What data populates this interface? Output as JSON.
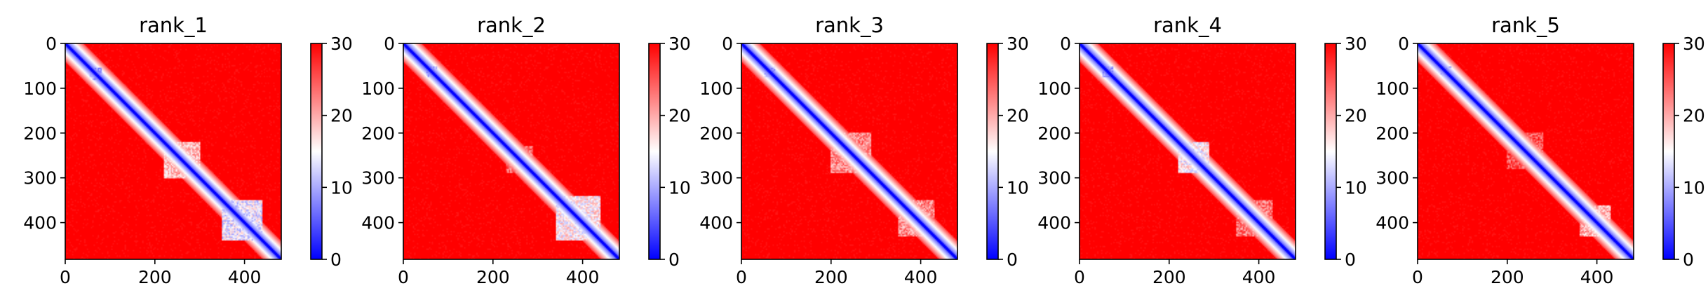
{
  "chart_data": [
    {
      "type": "heatmap",
      "title": "rank_1",
      "xlabel": "",
      "ylabel": "",
      "xlim": [
        0,
        482
      ],
      "ylim": [
        482,
        0
      ],
      "xticks": [
        0,
        200,
        400
      ],
      "yticks": [
        0,
        100,
        200,
        300,
        400
      ],
      "colorbar": {
        "range": [
          0,
          30
        ],
        "ticks": [
          0,
          10,
          20,
          30
        ],
        "cmap": "bwr"
      },
      "blocks": [
        {
          "start": 55,
          "end": 80,
          "value": 6
        },
        {
          "start": 220,
          "end": 300,
          "value": 14
        },
        {
          "start": 350,
          "end": 440,
          "value": 9
        }
      ]
    },
    {
      "type": "heatmap",
      "title": "rank_2",
      "xlabel": "",
      "ylabel": "",
      "xlim": [
        0,
        482
      ],
      "ylim": [
        482,
        0
      ],
      "xticks": [
        0,
        200,
        400
      ],
      "yticks": [
        0,
        100,
        200,
        300,
        400
      ],
      "colorbar": {
        "range": [
          0,
          30
        ],
        "ticks": [
          0,
          10,
          20,
          30
        ],
        "cmap": "bwr"
      },
      "blocks": [
        {
          "start": 50,
          "end": 75,
          "value": 7
        },
        {
          "start": 230,
          "end": 290,
          "value": 19
        },
        {
          "start": 340,
          "end": 440,
          "value": 11
        }
      ]
    },
    {
      "type": "heatmap",
      "title": "rank_3",
      "xlabel": "",
      "ylabel": "",
      "xlim": [
        0,
        482
      ],
      "ylim": [
        482,
        0
      ],
      "xticks": [
        0,
        200,
        400
      ],
      "yticks": [
        0,
        100,
        200,
        300,
        400
      ],
      "colorbar": {
        "range": [
          0,
          30
        ],
        "ticks": [
          0,
          10,
          20,
          30
        ],
        "cmap": "bwr"
      },
      "blocks": [
        {
          "start": 50,
          "end": 75,
          "value": 6
        },
        {
          "start": 200,
          "end": 290,
          "value": 17
        },
        {
          "start": 350,
          "end": 430,
          "value": 17
        }
      ]
    },
    {
      "type": "heatmap",
      "title": "rank_4",
      "xlabel": "",
      "ylabel": "",
      "xlim": [
        0,
        482
      ],
      "ylim": [
        482,
        0
      ],
      "xticks": [
        0,
        200,
        400
      ],
      "yticks": [
        0,
        100,
        200,
        300,
        400
      ],
      "colorbar": {
        "range": [
          0,
          30
        ],
        "ticks": [
          0,
          10,
          20,
          30
        ],
        "cmap": "bwr"
      },
      "blocks": [
        {
          "start": 50,
          "end": 75,
          "value": 6
        },
        {
          "start": 220,
          "end": 290,
          "value": 11
        },
        {
          "start": 350,
          "end": 430,
          "value": 18
        }
      ]
    },
    {
      "type": "heatmap",
      "title": "rank_5",
      "xlabel": "",
      "ylabel": "",
      "xlim": [
        0,
        482
      ],
      "ylim": [
        482,
        0
      ],
      "xticks": [
        0,
        200,
        400
      ],
      "yticks": [
        0,
        100,
        200,
        300,
        400
      ],
      "colorbar": {
        "range": [
          0,
          30
        ],
        "ticks": [
          0,
          10,
          20,
          30
        ],
        "cmap": "bwr"
      },
      "blocks": [
        {
          "start": 50,
          "end": 75,
          "value": 7
        },
        {
          "start": 200,
          "end": 280,
          "value": 20
        },
        {
          "start": 360,
          "end": 430,
          "value": 15
        }
      ]
    }
  ]
}
